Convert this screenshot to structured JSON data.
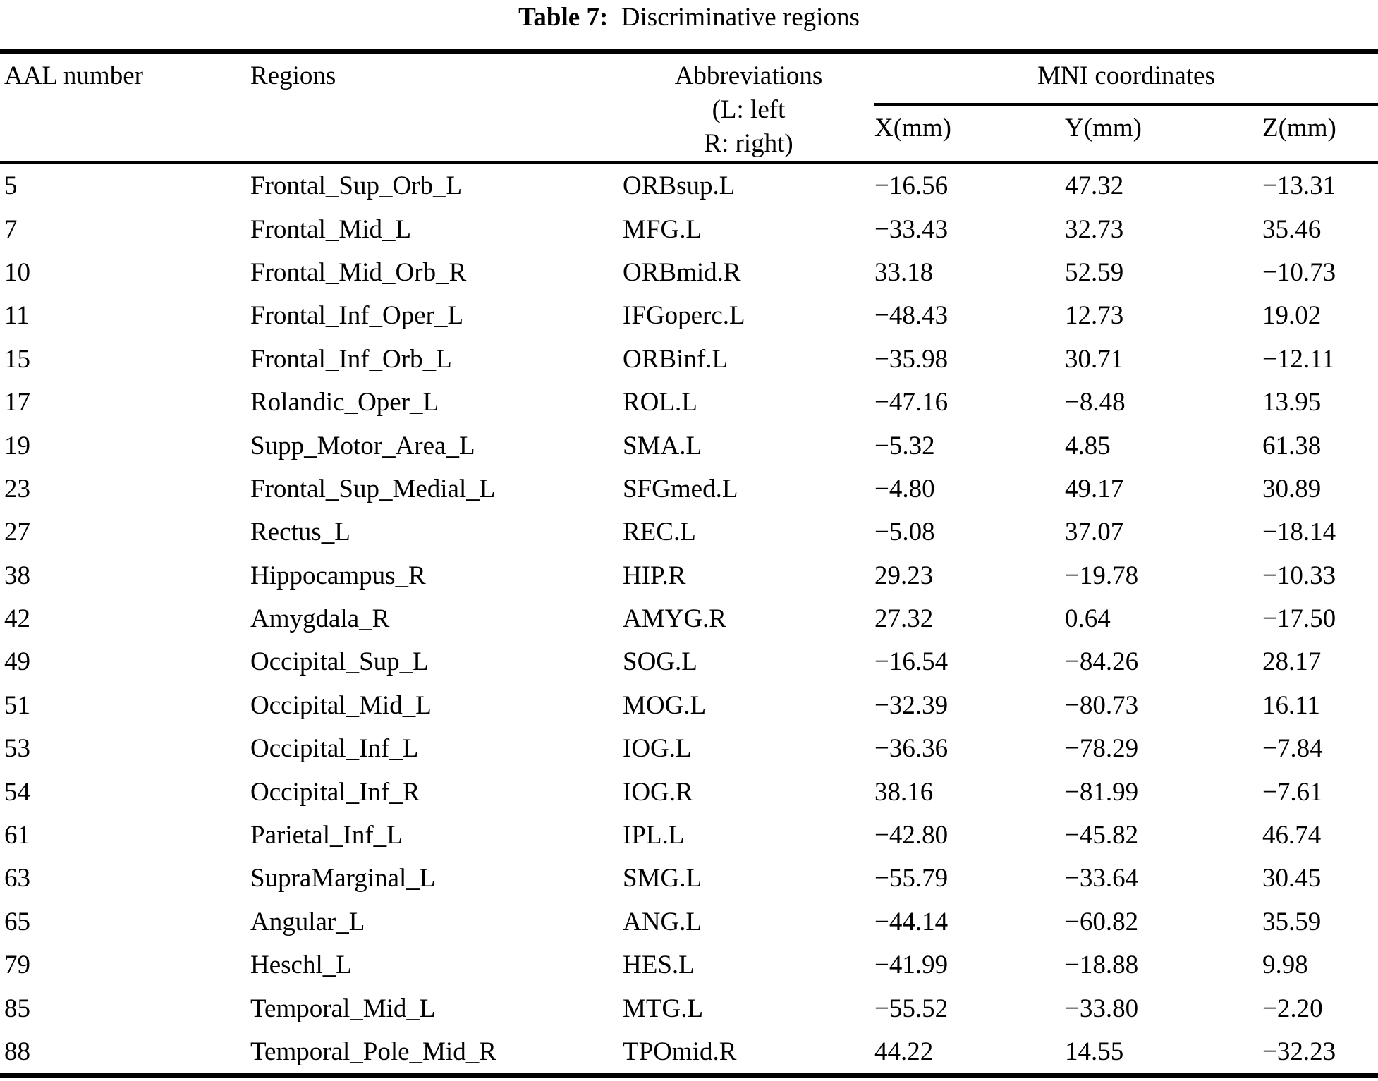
{
  "table": {
    "caption": {
      "label": "Table 7:",
      "text": "Discriminative regions"
    },
    "headers": {
      "aal": "AAL number",
      "regions": "Regions",
      "abbr_line1": "Abbreviations",
      "abbr_line2": "(L: left",
      "abbr_line3": "R: right)",
      "mni_group": "MNI coordinates",
      "x": "X(mm)",
      "y": "Y(mm)",
      "z": "Z(mm)"
    },
    "rows": [
      {
        "aal": "5",
        "region": "Frontal_Sup_Orb_L",
        "abbr": "ORBsup.L",
        "x": "−16.56",
        "y": "47.32",
        "z": "−13.31"
      },
      {
        "aal": "7",
        "region": "Frontal_Mid_L",
        "abbr": "MFG.L",
        "x": "−33.43",
        "y": "32.73",
        "z": "35.46"
      },
      {
        "aal": "10",
        "region": "Frontal_Mid_Orb_R",
        "abbr": "ORBmid.R",
        "x": "33.18",
        "y": "52.59",
        "z": "−10.73"
      },
      {
        "aal": "11",
        "region": "Frontal_Inf_Oper_L",
        "abbr": "IFGoperc.L",
        "x": "−48.43",
        "y": "12.73",
        "z": "19.02"
      },
      {
        "aal": "15",
        "region": "Frontal_Inf_Orb_L",
        "abbr": "ORBinf.L",
        "x": "−35.98",
        "y": "30.71",
        "z": "−12.11"
      },
      {
        "aal": "17",
        "region": "Rolandic_Oper_L",
        "abbr": "ROL.L",
        "x": "−47.16",
        "y": "−8.48",
        "z": "13.95"
      },
      {
        "aal": "19",
        "region": "Supp_Motor_Area_L",
        "abbr": "SMA.L",
        "x": "−5.32",
        "y": "4.85",
        "z": "61.38"
      },
      {
        "aal": "23",
        "region": "Frontal_Sup_Medial_L",
        "abbr": "SFGmed.L",
        "x": "−4.80",
        "y": "49.17",
        "z": "30.89"
      },
      {
        "aal": "27",
        "region": "Rectus_L",
        "abbr": "REC.L",
        "x": "−5.08",
        "y": "37.07",
        "z": "−18.14"
      },
      {
        "aal": "38",
        "region": "Hippocampus_R",
        "abbr": "HIP.R",
        "x": "29.23",
        "y": "−19.78",
        "z": "−10.33"
      },
      {
        "aal": "42",
        "region": "Amygdala_R",
        "abbr": "AMYG.R",
        "x": "27.32",
        "y": "0.64",
        "z": "−17.50"
      },
      {
        "aal": "49",
        "region": "Occipital_Sup_L",
        "abbr": "SOG.L",
        "x": "−16.54",
        "y": "−84.26",
        "z": "28.17"
      },
      {
        "aal": "51",
        "region": "Occipital_Mid_L",
        "abbr": "MOG.L",
        "x": "−32.39",
        "y": "−80.73",
        "z": "16.11"
      },
      {
        "aal": "53",
        "region": "Occipital_Inf_L",
        "abbr": "IOG.L",
        "x": "−36.36",
        "y": "−78.29",
        "z": "−7.84"
      },
      {
        "aal": "54",
        "region": "Occipital_Inf_R",
        "abbr": "IOG.R",
        "x": "38.16",
        "y": "−81.99",
        "z": "−7.61"
      },
      {
        "aal": "61",
        "region": "Parietal_Inf_L",
        "abbr": "IPL.L",
        "x": "−42.80",
        "y": "−45.82",
        "z": "46.74"
      },
      {
        "aal": "63",
        "region": "SupraMarginal_L",
        "abbr": "SMG.L",
        "x": "−55.79",
        "y": "−33.64",
        "z": "30.45"
      },
      {
        "aal": "65",
        "region": "Angular_L",
        "abbr": "ANG.L",
        "x": "−44.14",
        "y": "−60.82",
        "z": "35.59"
      },
      {
        "aal": "79",
        "region": "Heschl_L",
        "abbr": "HES.L",
        "x": "−41.99",
        "y": "−18.88",
        "z": "9.98"
      },
      {
        "aal": "85",
        "region": "Temporal_Mid_L",
        "abbr": "MTG.L",
        "x": "−55.52",
        "y": "−33.80",
        "z": "−2.20"
      },
      {
        "aal": "88",
        "region": "Temporal_Pole_Mid_R",
        "abbr": "TPOmid.R",
        "x": "44.22",
        "y": "14.55",
        "z": "−32.23"
      }
    ]
  }
}
